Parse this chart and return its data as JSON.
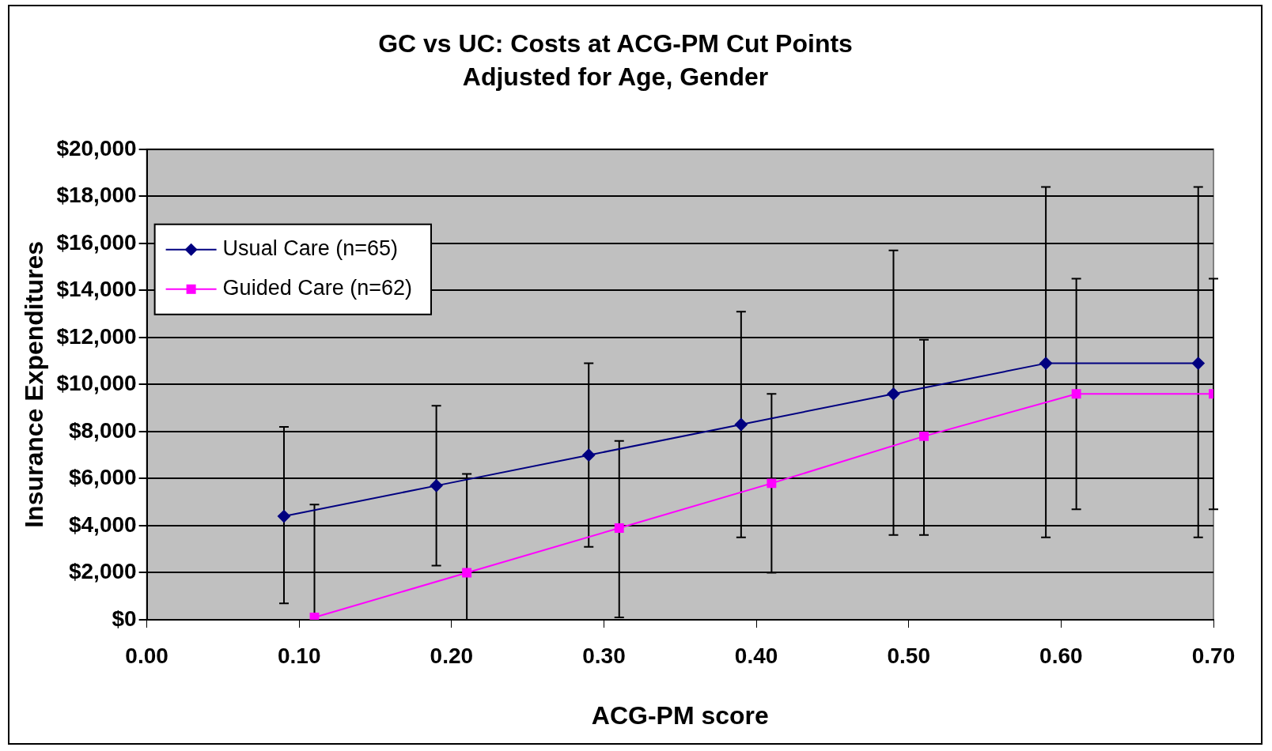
{
  "chart_data": {
    "type": "line",
    "title": "GC vs UC: Costs at ACG-PM Cut Points",
    "subtitle": "Adjusted for Age, Gender",
    "xlabel": "ACG-PM score",
    "ylabel": "Insurance Expenditures",
    "series": [
      {
        "name": "Usual Care (n=65)",
        "color": "#000080",
        "marker": "diamond",
        "x": [
          0.09,
          0.19,
          0.29,
          0.39,
          0.49,
          0.59,
          0.69
        ],
        "values": [
          4400,
          5700,
          7000,
          8300,
          9600,
          10900,
          10900
        ],
        "errors": [
          [
            700,
            8200
          ],
          [
            2300,
            9100
          ],
          [
            3100,
            10900
          ],
          [
            3500,
            13100
          ],
          [
            3600,
            15700
          ],
          [
            3500,
            18400
          ],
          [
            3500,
            18400
          ]
        ]
      },
      {
        "name": "Guided Care (n=62)",
        "color": "#ff00ff",
        "marker": "square",
        "x": [
          0.11,
          0.21,
          0.31,
          0.41,
          0.51,
          0.61,
          0.7
        ],
        "values": [
          100,
          2000,
          3900,
          5800,
          7800,
          9600,
          9600
        ],
        "errors": [
          [
            0,
            4900
          ],
          [
            0,
            6200
          ],
          [
            100,
            7600
          ],
          [
            2000,
            9600
          ],
          [
            3600,
            11900
          ],
          [
            4700,
            14500
          ],
          [
            4700,
            14500
          ]
        ]
      }
    ],
    "xlim": [
      0,
      0.7
    ],
    "xticks": [
      {
        "value": 0,
        "label": "0.00"
      },
      {
        "value": 0.1,
        "label": "0.10"
      },
      {
        "value": 0.2,
        "label": "0.20"
      },
      {
        "value": 0.3,
        "label": "0.30"
      },
      {
        "value": 0.4,
        "label": "0.40"
      },
      {
        "value": 0.5,
        "label": "0.50"
      },
      {
        "value": 0.6,
        "label": "0.60"
      },
      {
        "value": 0.7,
        "label": "0.70"
      }
    ],
    "ylim": [
      0,
      20000
    ],
    "yticks": [
      {
        "value": 0,
        "label": "$0"
      },
      {
        "value": 2000,
        "label": "$2,000"
      },
      {
        "value": 4000,
        "label": "$4,000"
      },
      {
        "value": 6000,
        "label": "$6,000"
      },
      {
        "value": 8000,
        "label": "$8,000"
      },
      {
        "value": 10000,
        "label": "$10,000"
      },
      {
        "value": 12000,
        "label": "$12,000"
      },
      {
        "value": 14000,
        "label": "$14,000"
      },
      {
        "value": 16000,
        "label": "$16,000"
      },
      {
        "value": 18000,
        "label": "$18,000"
      },
      {
        "value": 20000,
        "label": "$20,000"
      }
    ],
    "grid": "y",
    "legend": "top left",
    "line_style": "solid"
  }
}
